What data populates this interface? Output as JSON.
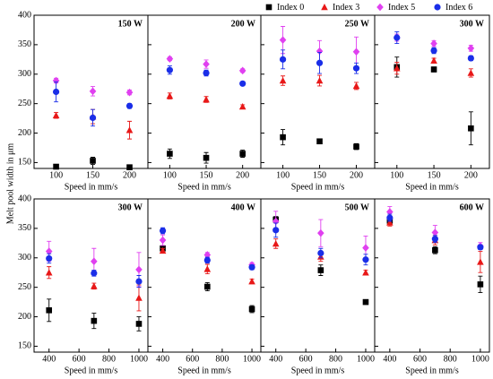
{
  "ylabel": "Melt pool width in μm",
  "legend": [
    {
      "name": "Index 0",
      "color": "#000000",
      "marker": "square"
    },
    {
      "name": "Index 3",
      "color": "#e81818",
      "marker": "triangle"
    },
    {
      "name": "Index 5",
      "color": "#e040f0",
      "marker": "diamond"
    },
    {
      "name": "Index 6",
      "color": "#1a2ee8",
      "marker": "circle"
    }
  ],
  "chart_data": [
    {
      "type": "scatter",
      "title": "150 W",
      "xlabel": "Speed in mm/s",
      "x": [
        100,
        150,
        200
      ],
      "xlim": [
        70,
        225
      ],
      "xticks": [
        100,
        150,
        200
      ],
      "ylim": [
        140,
        400
      ],
      "yticks": [
        150,
        200,
        250,
        300,
        350,
        400
      ],
      "series": [
        {
          "values": [
            143,
            153,
            142
          ],
          "errors": [
            3,
            6,
            3
          ]
        },
        {
          "values": [
            230,
            228,
            205
          ],
          "errors": [
            5,
            12,
            15
          ]
        },
        {
          "values": [
            289,
            271,
            269
          ],
          "errors": [
            4,
            8,
            4
          ]
        },
        {
          "values": [
            270,
            226,
            246
          ],
          "errors": [
            17,
            14,
            4
          ]
        }
      ]
    },
    {
      "type": "scatter",
      "title": "200 W",
      "xlabel": "Speed in mm/s",
      "x": [
        100,
        150,
        200
      ],
      "xlim": [
        70,
        225
      ],
      "xticks": [
        100,
        150,
        200
      ],
      "ylim": [
        140,
        400
      ],
      "yticks": [
        150,
        200,
        250,
        300,
        350,
        400
      ],
      "series": [
        {
          "values": [
            165,
            158,
            165
          ],
          "errors": [
            8,
            9,
            6
          ]
        },
        {
          "values": [
            263,
            257,
            245
          ],
          "errors": [
            5,
            5,
            3
          ]
        },
        {
          "values": [
            326,
            317,
            306
          ],
          "errors": [
            3,
            7,
            3
          ]
        },
        {
          "values": [
            307,
            302,
            284
          ],
          "errors": [
            7,
            5,
            3
          ]
        }
      ]
    },
    {
      "type": "scatter",
      "title": "250 W",
      "xlabel": "Speed in mm/s",
      "x": [
        100,
        150,
        200
      ],
      "xlim": [
        70,
        225
      ],
      "xticks": [
        100,
        150,
        200
      ],
      "ylim": [
        140,
        400
      ],
      "yticks": [
        150,
        200,
        250,
        300,
        350,
        400
      ],
      "series": [
        {
          "values": [
            193,
            186,
            177
          ],
          "errors": [
            13,
            3,
            5
          ]
        },
        {
          "values": [
            289,
            289,
            280
          ],
          "errors": [
            8,
            9,
            6
          ]
        },
        {
          "values": [
            358,
            339,
            338
          ],
          "errors": [
            23,
            18,
            25
          ]
        },
        {
          "values": [
            325,
            319,
            310
          ],
          "errors": [
            16,
            18,
            9
          ]
        }
      ]
    },
    {
      "type": "scatter",
      "title": "300 W",
      "xlabel": "Speed in mm/s",
      "x": [
        100,
        150,
        200
      ],
      "xlim": [
        70,
        225
      ],
      "xticks": [
        100,
        150,
        200
      ],
      "ylim": [
        140,
        400
      ],
      "yticks": [
        150,
        200,
        250,
        300,
        350,
        400
      ],
      "series": [
        {
          "values": [
            312,
            308,
            208
          ],
          "errors": [
            17,
            4,
            28
          ]
        },
        {
          "values": [
            310,
            323,
            302
          ],
          "errors": [
            10,
            4,
            7
          ]
        },
        {
          "values": [
            362,
            352,
            344
          ],
          "errors": [
            6,
            5,
            5
          ]
        },
        {
          "values": [
            362,
            340,
            327
          ],
          "errors": [
            10,
            5,
            4
          ]
        }
      ]
    },
    {
      "type": "scatter",
      "title": "300 W",
      "xlabel": "Speed in mm/s",
      "x": [
        400,
        700,
        1000
      ],
      "xlim": [
        300,
        1060
      ],
      "xticks": [
        400,
        600,
        800,
        1000
      ],
      "ylim": [
        140,
        400
      ],
      "yticks": [
        150,
        200,
        250,
        300,
        350,
        400
      ],
      "series": [
        {
          "values": [
            211,
            193,
            188
          ],
          "errors": [
            19,
            13,
            12
          ]
        },
        {
          "values": [
            275,
            252,
            232
          ],
          "errors": [
            10,
            5,
            22
          ]
        },
        {
          "values": [
            311,
            294,
            280
          ],
          "errors": [
            17,
            22,
            29
          ]
        },
        {
          "values": [
            299,
            274,
            260
          ],
          "errors": [
            8,
            5,
            10
          ]
        }
      ]
    },
    {
      "type": "scatter",
      "title": "400 W",
      "xlabel": "Speed in mm/s",
      "x": [
        400,
        700,
        1000
      ],
      "xlim": [
        300,
        1060
      ],
      "xticks": [
        400,
        600,
        800,
        1000
      ],
      "ylim": [
        140,
        400
      ],
      "yticks": [
        150,
        200,
        250,
        300,
        350,
        400
      ],
      "series": [
        {
          "values": [
            316,
            251,
            213
          ],
          "errors": [
            5,
            7,
            6
          ]
        },
        {
          "values": [
            312,
            281,
            260
          ],
          "errors": [
            4,
            8,
            4
          ]
        },
        {
          "values": [
            330,
            305,
            288
          ],
          "errors": [
            9,
            4,
            4
          ]
        },
        {
          "values": [
            346,
            296,
            284
          ],
          "errors": [
            5,
            5,
            4
          ]
        }
      ]
    },
    {
      "type": "scatter",
      "title": "500 W",
      "xlabel": "Speed in mm/s",
      "x": [
        400,
        700,
        1000
      ],
      "xlim": [
        300,
        1060
      ],
      "xticks": [
        400,
        600,
        800,
        1000
      ],
      "ylim": [
        140,
        400
      ],
      "yticks": [
        150,
        200,
        250,
        300,
        350,
        400
      ],
      "series": [
        {
          "values": [
            365,
            279,
            225
          ],
          "errors": [
            5,
            9,
            4
          ]
        },
        {
          "values": [
            324,
            302,
            275
          ],
          "errors": [
            8,
            8,
            4
          ]
        },
        {
          "values": [
            362,
            342,
            317
          ],
          "errors": [
            17,
            23,
            20
          ]
        },
        {
          "values": [
            347,
            308,
            297
          ],
          "errors": [
            12,
            8,
            9
          ]
        }
      ]
    },
    {
      "type": "scatter",
      "title": "600 W",
      "xlabel": "Speed in mm/s",
      "x": [
        400,
        700,
        1000
      ],
      "xlim": [
        300,
        1060
      ],
      "xticks": [
        400,
        600,
        800,
        1000
      ],
      "ylim": [
        140,
        400
      ],
      "yticks": [
        150,
        200,
        250,
        300,
        350,
        400
      ],
      "series": [
        {
          "values": [
            363,
            313,
            255
          ],
          "errors": [
            7,
            6,
            14
          ]
        },
        {
          "values": [
            360,
            330,
            293
          ],
          "errors": [
            6,
            8,
            18
          ]
        },
        {
          "values": [
            378,
            343,
            320
          ],
          "errors": [
            9,
            12,
            6
          ]
        },
        {
          "values": [
            368,
            332,
            318
          ],
          "errors": [
            6,
            6,
            4
          ]
        }
      ]
    }
  ]
}
